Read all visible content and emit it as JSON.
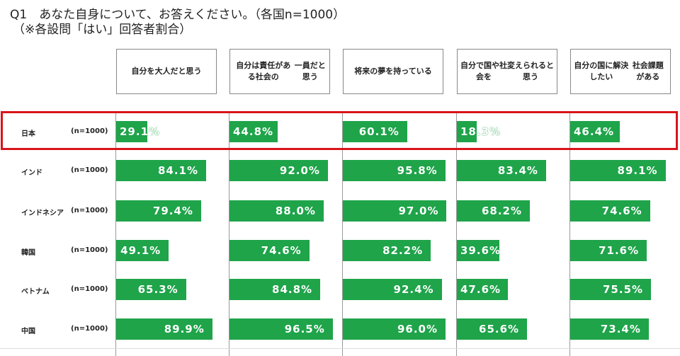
{
  "title_line1": "Q1　あなた自身について、お答えください。（各国n=1000）",
  "title_line2": "（※各設問「はい」回答者割合）",
  "colors": {
    "bar": "#1fa44a",
    "highlight": "#d9141b"
  },
  "chart_data": {
    "type": "bar",
    "categories": [
      "自分を大人だと思う",
      "自分は責任がある社会の一員だと思う",
      "将来の夢を持っている",
      "自分で国や社会を変えられると思う",
      "自分の国に解決したい社会課題がある"
    ],
    "category_lines": [
      [
        "自分を大人だと思う"
      ],
      [
        "自分は責任がある社会の",
        "一員だと思う"
      ],
      [
        "将来の夢を持っている"
      ],
      [
        "自分で国や社会を",
        "変えられると思う"
      ],
      [
        "自分の国に解決したい",
        "社会課題がある"
      ]
    ],
    "unit": "%",
    "highlighted": "日本",
    "series": [
      {
        "name": "日本",
        "n": "(n=1000)",
        "values": [
          29.1,
          44.8,
          60.1,
          18.3,
          46.4
        ]
      },
      {
        "name": "インド",
        "n": "(n=1000)",
        "values": [
          84.1,
          92.0,
          95.8,
          83.4,
          89.1
        ]
      },
      {
        "name": "インドネシア",
        "n": "(n=1000)",
        "values": [
          79.4,
          88.0,
          97.0,
          68.2,
          74.6
        ]
      },
      {
        "name": "韓国",
        "n": "(n=1000)",
        "values": [
          49.1,
          74.6,
          82.2,
          39.6,
          71.6
        ]
      },
      {
        "name": "ベトナム",
        "n": "(n=1000)",
        "values": [
          65.3,
          84.8,
          92.4,
          47.6,
          75.5
        ]
      },
      {
        "name": "中国",
        "n": "(n=1000)",
        "values": [
          89.9,
          96.5,
          96.0,
          65.6,
          73.4
        ]
      }
    ]
  }
}
